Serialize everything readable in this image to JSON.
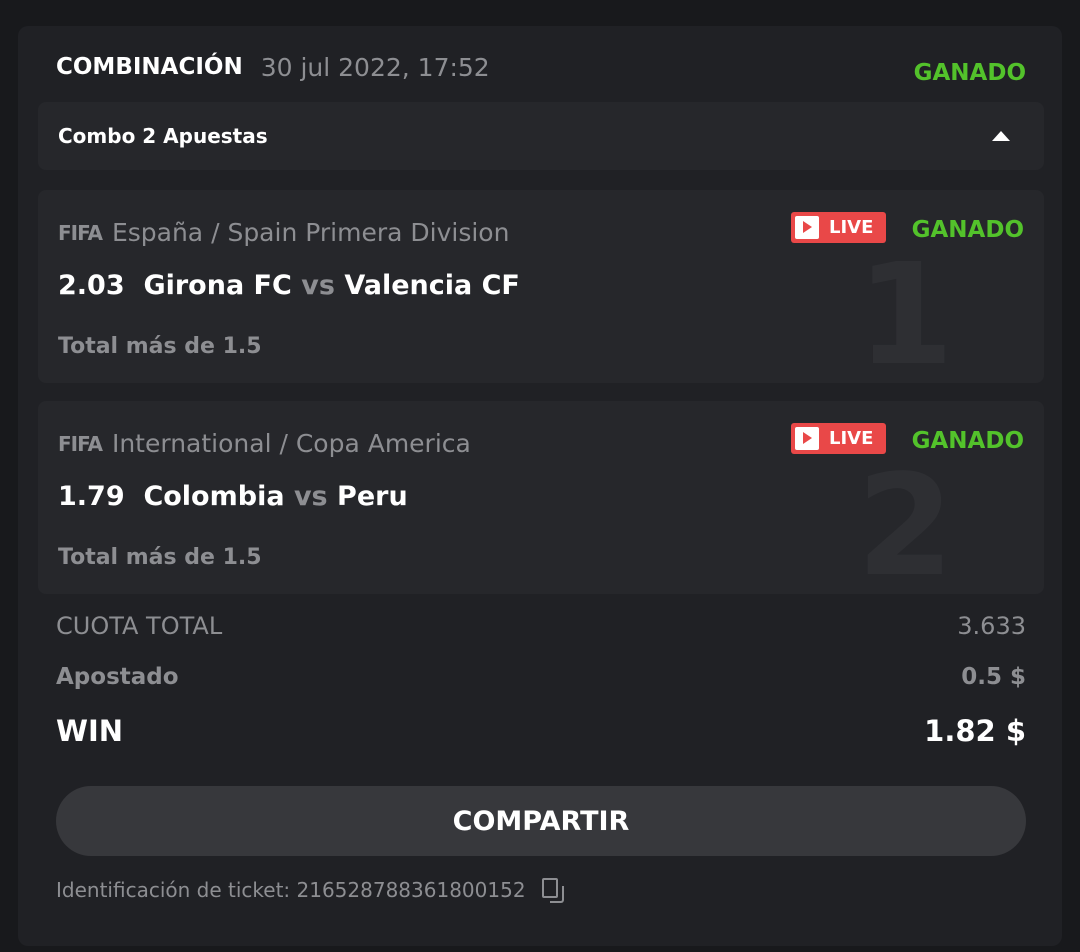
{
  "header": {
    "title": "COMBINACIÓN",
    "date": "30 jul 2022, 17:52",
    "status": "GANADO"
  },
  "combo": {
    "label": "Combo 2 Apuestas"
  },
  "bets": [
    {
      "index": "1",
      "sport_logo": "FIFA",
      "league": "España / Spain Primera Division",
      "live": "LIVE",
      "status": "GANADO",
      "odds": "2.03",
      "home": "Girona FC",
      "vs": "vs",
      "away": "Valencia CF",
      "market": "Total más de 1.5"
    },
    {
      "index": "2",
      "sport_logo": "FIFA",
      "league": "International / Copa America",
      "live": "LIVE",
      "status": "GANADO",
      "odds": "1.79",
      "home": "Colombia",
      "vs": "vs",
      "away": "Peru",
      "market": "Total más de 1.5"
    }
  ],
  "summary": {
    "total_odds_label": "CUOTA TOTAL",
    "total_odds": "3.633",
    "stake_label": "Apostado",
    "stake": "0.5 $",
    "win_label": "WIN",
    "win": "1.82 $"
  },
  "share_label": "COMPARTIR",
  "ticket": {
    "label": "Identificación de ticket: 216528788361800152"
  },
  "colors": {
    "win_green": "#53c22b",
    "live_red": "#e94848"
  }
}
